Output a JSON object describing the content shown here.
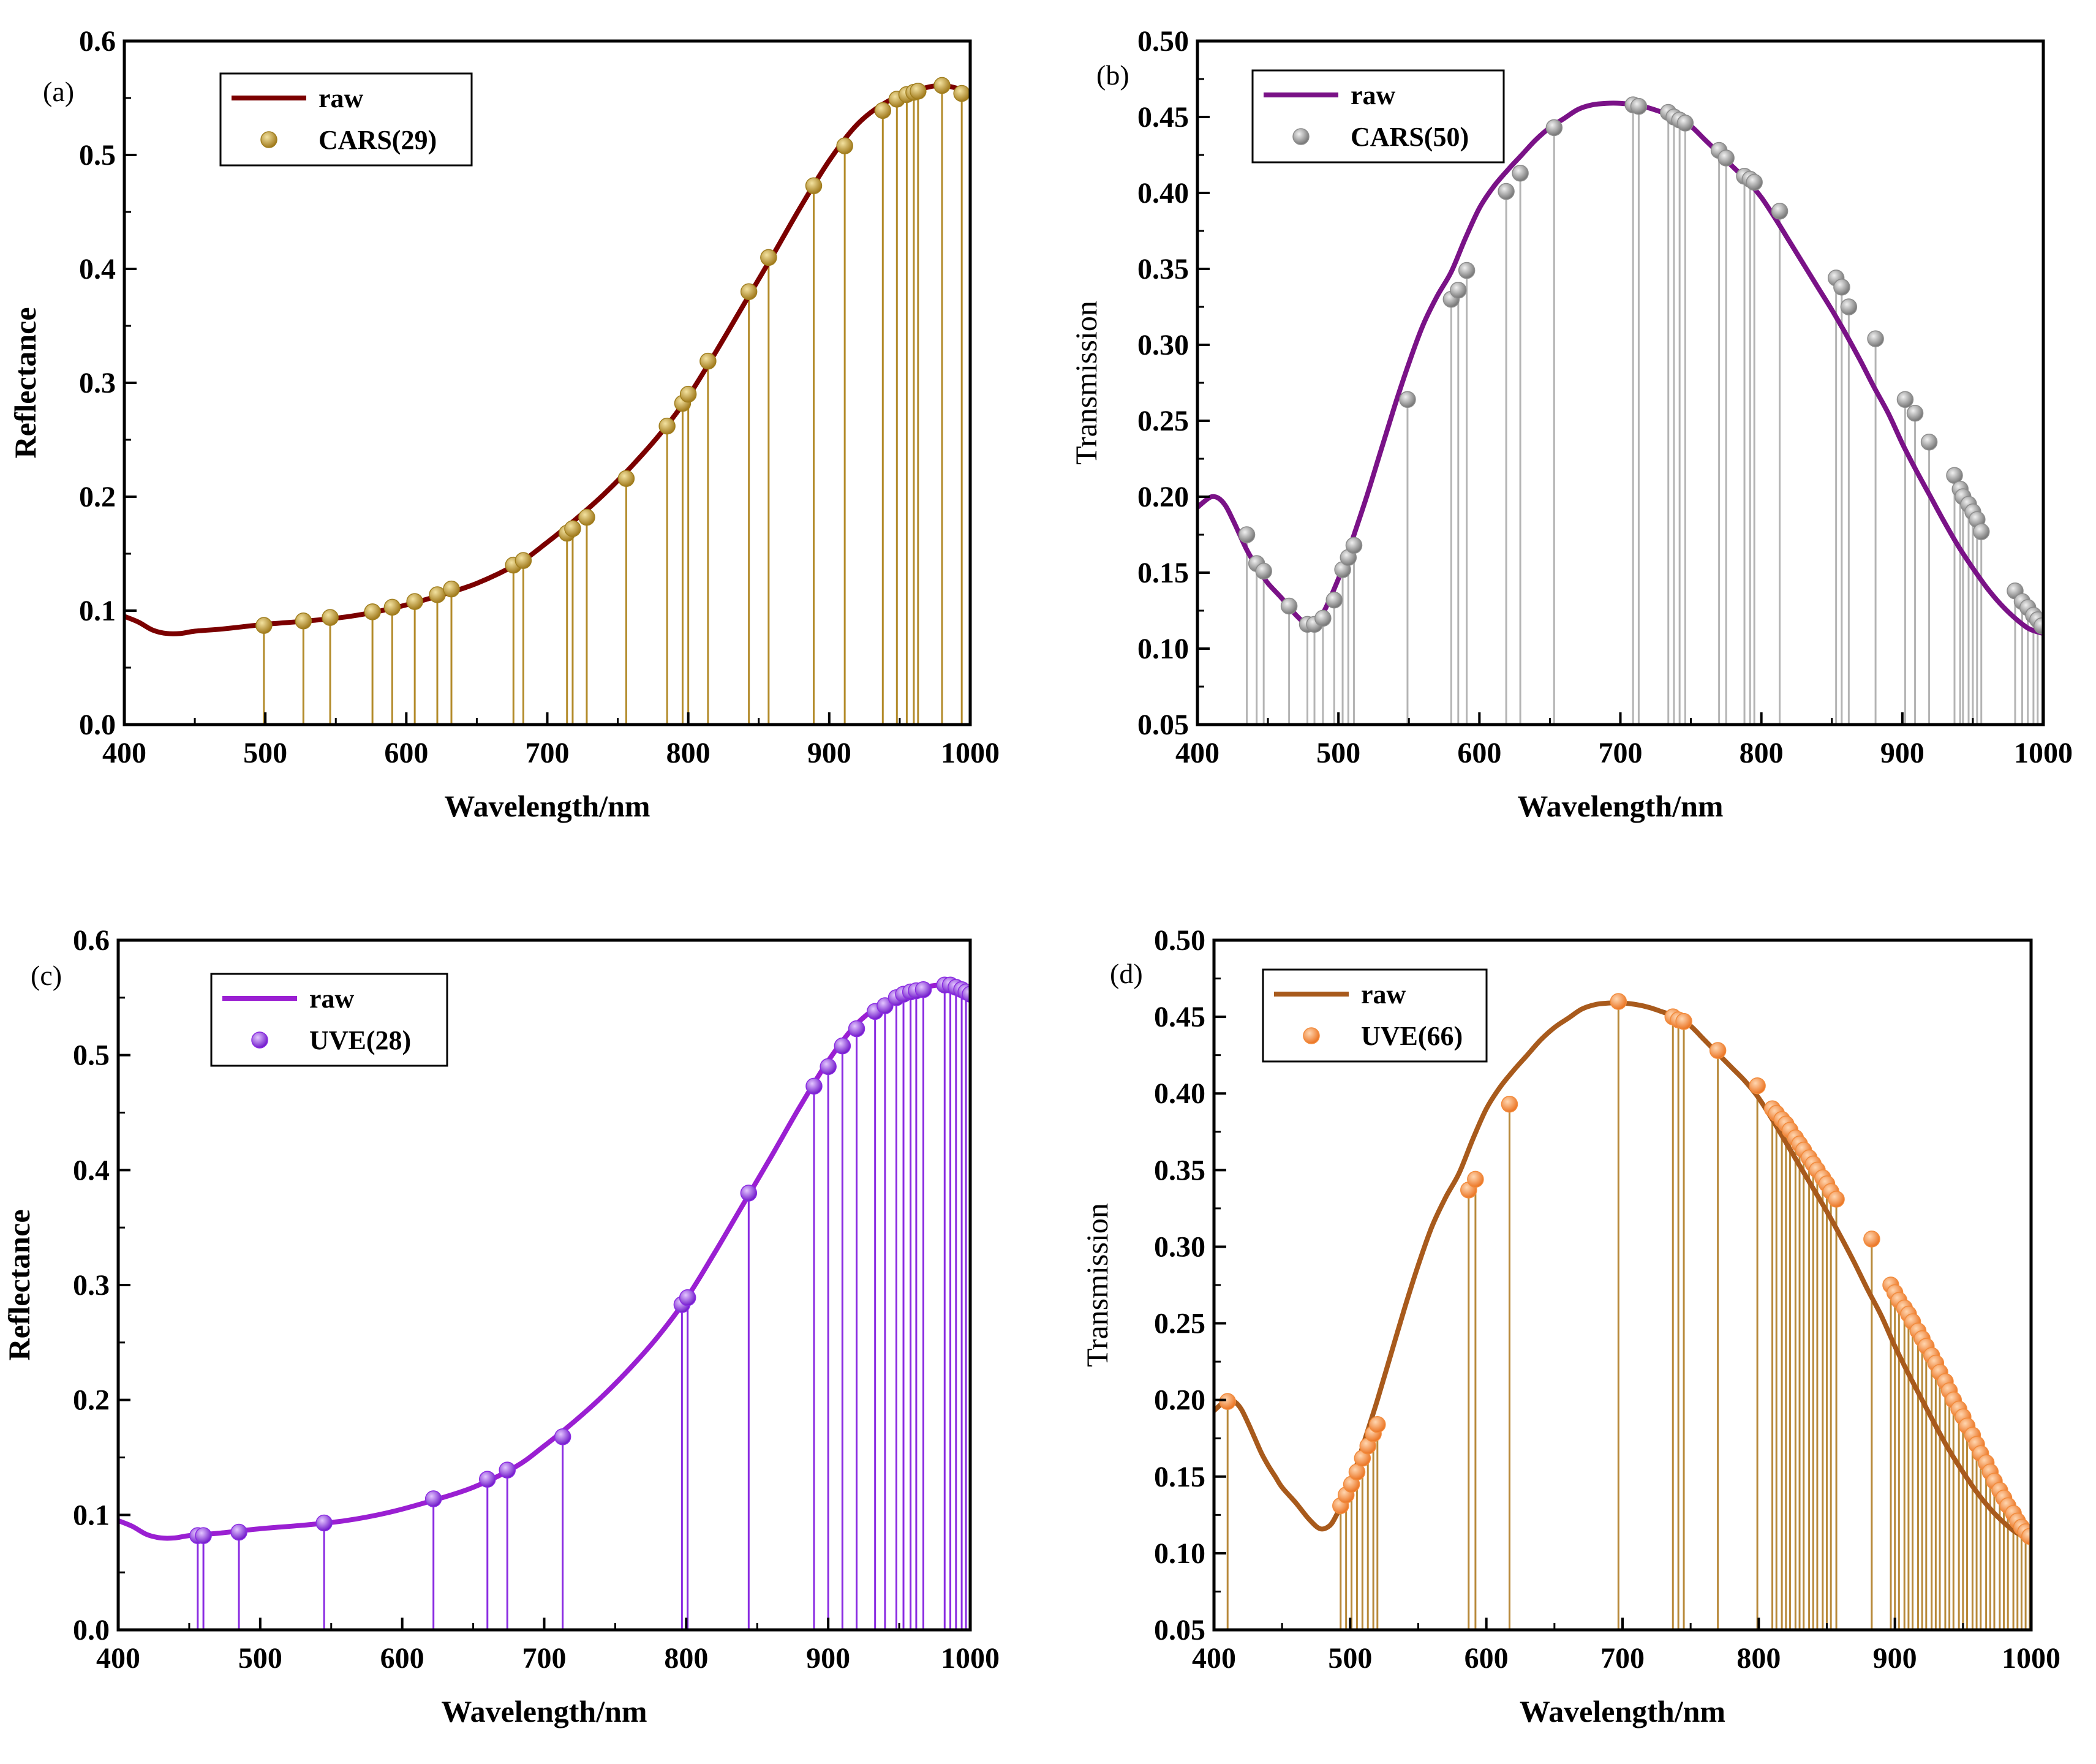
{
  "chart_data": [
    {
      "id": "a",
      "type": "line",
      "panel_label": "(a)",
      "xlabel": "Wavelength/nm",
      "ylabel": "Reflectance",
      "xlim": [
        400,
        1000
      ],
      "ylim": [
        0.0,
        0.6
      ],
      "xticks": [
        "400",
        "500",
        "600",
        "700",
        "800",
        "900",
        "1000"
      ],
      "yticks": [
        "0.0",
        "0.1",
        "0.2",
        "0.3",
        "0.4",
        "0.5",
        "0.6"
      ],
      "legend_position": "top-left",
      "series": [
        {
          "name": "raw",
          "kind": "line",
          "color": "#7b0000",
          "x": [
            400,
            410,
            420,
            430,
            440,
            450,
            470,
            500,
            530,
            560,
            590,
            620,
            650,
            680,
            700,
            720,
            740,
            760,
            780,
            800,
            820,
            840,
            860,
            880,
            900,
            920,
            940,
            960,
            980,
            1000
          ],
          "y": [
            0.095,
            0.09,
            0.083,
            0.08,
            0.08,
            0.082,
            0.084,
            0.088,
            0.091,
            0.095,
            0.102,
            0.112,
            0.124,
            0.142,
            0.16,
            0.18,
            0.202,
            0.227,
            0.255,
            0.288,
            0.328,
            0.37,
            0.412,
            0.455,
            0.495,
            0.527,
            0.546,
            0.556,
            0.561,
            0.555
          ]
        },
        {
          "name": "CARS(29)",
          "kind": "stem",
          "color": "#a07e1e",
          "stem_color": "#b38b2a",
          "x": [
            499,
            527,
            546,
            576,
            590,
            606,
            622,
            632,
            676,
            683,
            714,
            718,
            728,
            756,
            785,
            796,
            800,
            814,
            843,
            857,
            889,
            911,
            938,
            948,
            955,
            960,
            963,
            980,
            994
          ],
          "y": [
            0.087,
            0.091,
            0.094,
            0.099,
            0.103,
            0.108,
            0.114,
            0.119,
            0.14,
            0.144,
            0.168,
            0.172,
            0.182,
            0.216,
            0.262,
            0.282,
            0.29,
            0.319,
            0.38,
            0.41,
            0.473,
            0.508,
            0.539,
            0.549,
            0.553,
            0.555,
            0.556,
            0.561,
            0.554
          ]
        }
      ]
    },
    {
      "id": "b",
      "type": "line",
      "panel_label": "(b)",
      "xlabel": "Wavelength/nm",
      "ylabel": "Transmission",
      "xlim": [
        400,
        1000
      ],
      "ylim": [
        0.05,
        0.5
      ],
      "xticks": [
        "400",
        "500",
        "600",
        "700",
        "800",
        "900",
        "1000"
      ],
      "yticks": [
        "0.05",
        "0.10",
        "0.15",
        "0.20",
        "0.25",
        "0.30",
        "0.35",
        "0.40",
        "0.45",
        "0.50"
      ],
      "legend_position": "top-left",
      "series": [
        {
          "name": "raw",
          "kind": "line",
          "color": "#7a1287",
          "x": [
            400,
            405,
            410,
            415,
            420,
            425,
            430,
            435,
            440,
            445,
            450,
            460,
            470,
            478,
            485,
            490,
            495,
            500,
            505,
            510,
            520,
            530,
            540,
            550,
            560,
            570,
            580,
            590,
            600,
            610,
            620,
            630,
            640,
            650,
            660,
            670,
            680,
            690,
            700,
            710,
            720,
            730,
            740,
            750,
            760,
            770,
            780,
            790,
            800,
            810,
            820,
            830,
            840,
            850,
            860,
            870,
            880,
            890,
            900,
            910,
            920,
            930,
            940,
            950,
            960,
            970,
            980,
            990,
            1000
          ],
          "y": [
            0.193,
            0.197,
            0.2,
            0.199,
            0.194,
            0.185,
            0.175,
            0.165,
            0.157,
            0.15,
            0.143,
            0.133,
            0.122,
            0.116,
            0.118,
            0.125,
            0.135,
            0.146,
            0.158,
            0.172,
            0.2,
            0.23,
            0.26,
            0.288,
            0.313,
            0.332,
            0.348,
            0.37,
            0.39,
            0.404,
            0.415,
            0.425,
            0.435,
            0.443,
            0.449,
            0.455,
            0.458,
            0.459,
            0.459,
            0.458,
            0.456,
            0.453,
            0.45,
            0.444,
            0.435,
            0.426,
            0.417,
            0.408,
            0.397,
            0.383,
            0.368,
            0.353,
            0.338,
            0.323,
            0.307,
            0.29,
            0.272,
            0.255,
            0.235,
            0.217,
            0.2,
            0.183,
            0.167,
            0.153,
            0.14,
            0.129,
            0.12,
            0.113,
            0.11
          ]
        },
        {
          "name": "CARS(50)",
          "kind": "stem",
          "color": "#8c8c8c",
          "stem_color": "#b4b4b4",
          "x": [
            435,
            442,
            447,
            465,
            478,
            483,
            489,
            497,
            503,
            507,
            511,
            549,
            580,
            585,
            591,
            619,
            629,
            653,
            709,
            713,
            734,
            738,
            742,
            746,
            770,
            775,
            788,
            792,
            795,
            813,
            853,
            857,
            862,
            881,
            902,
            909,
            919,
            937,
            941,
            943,
            947,
            950,
            953,
            956,
            980,
            985,
            989,
            993,
            996,
            999
          ],
          "y": [
            0.175,
            0.156,
            0.151,
            0.128,
            0.116,
            0.116,
            0.12,
            0.132,
            0.152,
            0.16,
            0.168,
            0.264,
            0.33,
            0.336,
            0.349,
            0.401,
            0.413,
            0.443,
            0.458,
            0.457,
            0.453,
            0.45,
            0.448,
            0.446,
            0.428,
            0.423,
            0.411,
            0.409,
            0.407,
            0.388,
            0.344,
            0.338,
            0.325,
            0.304,
            0.264,
            0.255,
            0.236,
            0.214,
            0.205,
            0.2,
            0.195,
            0.19,
            0.185,
            0.177,
            0.138,
            0.131,
            0.127,
            0.122,
            0.119,
            0.115
          ]
        }
      ]
    },
    {
      "id": "c",
      "type": "line",
      "panel_label": "(c)",
      "xlabel": "Wavelength/nm",
      "ylabel": "Reflectance",
      "xlim": [
        400,
        1000
      ],
      "ylim": [
        0.0,
        0.6
      ],
      "xticks": [
        "400",
        "500",
        "600",
        "700",
        "800",
        "900",
        "1000"
      ],
      "yticks": [
        "0.0",
        "0.1",
        "0.2",
        "0.3",
        "0.4",
        "0.5",
        "0.6"
      ],
      "legend_position": "top-left",
      "series": [
        {
          "name": "raw",
          "kind": "line",
          "color": "#9a1fd2",
          "x": [
            400,
            410,
            420,
            430,
            440,
            450,
            470,
            500,
            530,
            560,
            590,
            620,
            650,
            680,
            700,
            720,
            740,
            760,
            780,
            800,
            820,
            840,
            860,
            880,
            900,
            920,
            940,
            960,
            980,
            1000
          ],
          "y": [
            0.095,
            0.09,
            0.083,
            0.08,
            0.08,
            0.082,
            0.084,
            0.088,
            0.091,
            0.095,
            0.102,
            0.112,
            0.124,
            0.142,
            0.16,
            0.18,
            0.202,
            0.227,
            0.255,
            0.288,
            0.328,
            0.37,
            0.412,
            0.455,
            0.495,
            0.527,
            0.546,
            0.556,
            0.561,
            0.555
          ]
        },
        {
          "name": "UVE(28)",
          "kind": "stem",
          "color": "#8a2be2",
          "stem_color": "#8a2be2",
          "x": [
            456,
            460,
            485,
            545,
            622,
            660,
            674,
            713,
            797,
            801,
            844,
            890,
            900,
            910,
            920,
            933,
            940,
            948,
            953,
            958,
            962,
            967,
            982,
            986,
            990,
            994,
            997,
            1000
          ],
          "y": [
            0.082,
            0.082,
            0.085,
            0.093,
            0.114,
            0.131,
            0.139,
            0.168,
            0.283,
            0.289,
            0.38,
            0.473,
            0.49,
            0.508,
            0.523,
            0.538,
            0.543,
            0.55,
            0.553,
            0.555,
            0.556,
            0.557,
            0.561,
            0.561,
            0.559,
            0.557,
            0.555,
            0.553
          ]
        }
      ]
    },
    {
      "id": "d",
      "type": "line",
      "panel_label": "(d)",
      "xlabel": "Wavelength/nm",
      "ylabel": "Transmission",
      "xlim": [
        400,
        1000
      ],
      "ylim": [
        0.05,
        0.5
      ],
      "xticks": [
        "400",
        "500",
        "600",
        "700",
        "800",
        "900",
        "1000"
      ],
      "yticks": [
        "0.05",
        "0.10",
        "0.15",
        "0.20",
        "0.25",
        "0.30",
        "0.35",
        "0.40",
        "0.45",
        "0.50"
      ],
      "legend_position": "top-left",
      "series": [
        {
          "name": "raw",
          "kind": "line",
          "color": "#a85a1c",
          "x": [
            400,
            405,
            410,
            415,
            420,
            425,
            430,
            435,
            440,
            445,
            450,
            460,
            470,
            478,
            485,
            490,
            495,
            500,
            505,
            510,
            520,
            530,
            540,
            550,
            560,
            570,
            580,
            590,
            600,
            610,
            620,
            630,
            640,
            650,
            660,
            670,
            680,
            690,
            700,
            710,
            720,
            730,
            740,
            750,
            760,
            770,
            780,
            790,
            800,
            810,
            820,
            830,
            840,
            850,
            860,
            870,
            880,
            890,
            900,
            910,
            920,
            930,
            940,
            950,
            960,
            970,
            980,
            990,
            1000
          ],
          "y": [
            0.193,
            0.197,
            0.2,
            0.199,
            0.194,
            0.185,
            0.175,
            0.165,
            0.157,
            0.15,
            0.143,
            0.133,
            0.122,
            0.116,
            0.118,
            0.125,
            0.135,
            0.146,
            0.158,
            0.172,
            0.2,
            0.23,
            0.26,
            0.288,
            0.313,
            0.332,
            0.348,
            0.37,
            0.39,
            0.404,
            0.415,
            0.425,
            0.435,
            0.443,
            0.449,
            0.455,
            0.458,
            0.459,
            0.459,
            0.458,
            0.456,
            0.453,
            0.45,
            0.444,
            0.435,
            0.426,
            0.417,
            0.408,
            0.397,
            0.383,
            0.368,
            0.353,
            0.338,
            0.323,
            0.307,
            0.29,
            0.272,
            0.255,
            0.235,
            0.217,
            0.2,
            0.183,
            0.167,
            0.153,
            0.14,
            0.129,
            0.12,
            0.113,
            0.11
          ]
        },
        {
          "name": "UVE(66)",
          "kind": "stem",
          "color": "#f28b3c",
          "stem_color": "#b8893a",
          "x": [
            410,
            493,
            497,
            501,
            505,
            509,
            513,
            517,
            520,
            587,
            592,
            617,
            697,
            737,
            741,
            745,
            770,
            799,
            810,
            813,
            817,
            820,
            823,
            827,
            830,
            833,
            837,
            840,
            843,
            847,
            850,
            853,
            857,
            883,
            897,
            900,
            903,
            907,
            910,
            913,
            917,
            920,
            923,
            927,
            930,
            933,
            937,
            940,
            943,
            947,
            950,
            953,
            957,
            960,
            963,
            967,
            970,
            973,
            977,
            980,
            983,
            987,
            990,
            993,
            996,
            999
          ],
          "y": [
            0.199,
            0.131,
            0.138,
            0.145,
            0.153,
            0.162,
            0.17,
            0.178,
            0.184,
            0.337,
            0.344,
            0.393,
            0.46,
            0.45,
            0.448,
            0.447,
            0.428,
            0.405,
            0.39,
            0.387,
            0.383,
            0.38,
            0.376,
            0.371,
            0.367,
            0.363,
            0.358,
            0.354,
            0.35,
            0.345,
            0.341,
            0.336,
            0.331,
            0.305,
            0.275,
            0.27,
            0.265,
            0.26,
            0.256,
            0.251,
            0.245,
            0.24,
            0.235,
            0.229,
            0.224,
            0.218,
            0.212,
            0.206,
            0.2,
            0.194,
            0.189,
            0.183,
            0.177,
            0.171,
            0.165,
            0.159,
            0.153,
            0.147,
            0.141,
            0.136,
            0.131,
            0.126,
            0.121,
            0.117,
            0.114,
            0.111
          ]
        }
      ]
    }
  ]
}
